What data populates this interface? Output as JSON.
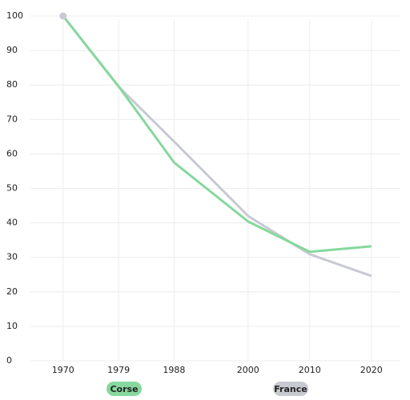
{
  "chart_data": {
    "type": "line",
    "x": [
      1970,
      1979,
      1988,
      2000,
      2010,
      2020
    ],
    "series": [
      {
        "name": "Corse",
        "color": "#86d89e",
        "values": [
          100,
          79.6,
          57.5,
          40.4,
          31.6,
          33.2
        ]
      },
      {
        "name": "France",
        "color": "#c8cad2",
        "values": [
          100,
          79.5,
          63.6,
          42,
          30.9,
          24.6
        ]
      }
    ],
    "xlim": [
      1964.7,
      2024.7
    ],
    "xticks": [
      1970,
      1979,
      1988,
      2000,
      2010,
      2020
    ],
    "ylim": [
      0,
      100
    ],
    "yticks": [
      0,
      10,
      20,
      30,
      40,
      50,
      60,
      70,
      80,
      90,
      100
    ],
    "grid": true,
    "legend": "bottom"
  }
}
